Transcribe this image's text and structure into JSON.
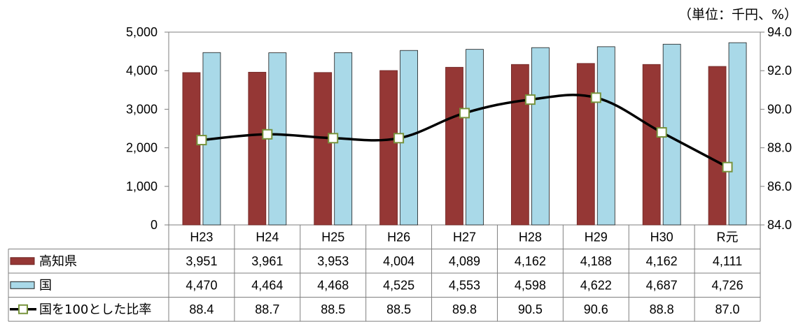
{
  "chart_data": {
    "type": "bar",
    "unit_note": "（単位：千円、%）",
    "categories": [
      "H23",
      "H24",
      "H25",
      "H26",
      "H27",
      "H28",
      "H29",
      "H30",
      "R元"
    ],
    "y_left": {
      "ylim": [
        0,
        5000
      ],
      "ticks": [
        "0",
        "1,000",
        "2,000",
        "3,000",
        "4,000",
        "5,000"
      ]
    },
    "y_right": {
      "ylim": [
        84.0,
        94.0
      ],
      "ticks": [
        "84.0",
        "86.0",
        "88.0",
        "90.0",
        "92.0",
        "94.0"
      ]
    },
    "series": [
      {
        "name": "高知県",
        "type": "bar",
        "axis": "left",
        "color": "#953735",
        "values": [
          3951,
          3961,
          3953,
          4004,
          4089,
          4162,
          4188,
          4162,
          4111
        ],
        "labels": [
          "3,951",
          "3,961",
          "3,953",
          "4,004",
          "4,089",
          "4,162",
          "4,188",
          "4,162",
          "4,111"
        ]
      },
      {
        "name": "国",
        "type": "bar",
        "axis": "left",
        "color": "#a9d9e8",
        "values": [
          4470,
          4464,
          4468,
          4525,
          4553,
          4598,
          4622,
          4687,
          4726
        ],
        "labels": [
          "4,470",
          "4,464",
          "4,468",
          "4,525",
          "4,553",
          "4,598",
          "4,622",
          "4,687",
          "4,726"
        ]
      },
      {
        "name": "国を100とした比率",
        "type": "line",
        "axis": "right",
        "color": "#000000",
        "marker_edge": "#77933c",
        "values": [
          88.4,
          88.7,
          88.5,
          88.5,
          89.8,
          90.5,
          90.6,
          88.8,
          87.0
        ],
        "labels": [
          "88.4",
          "88.7",
          "88.5",
          "88.5",
          "89.8",
          "90.5",
          "90.6",
          "88.8",
          "87.0"
        ]
      }
    ],
    "grid": false,
    "legend": "data-table"
  }
}
